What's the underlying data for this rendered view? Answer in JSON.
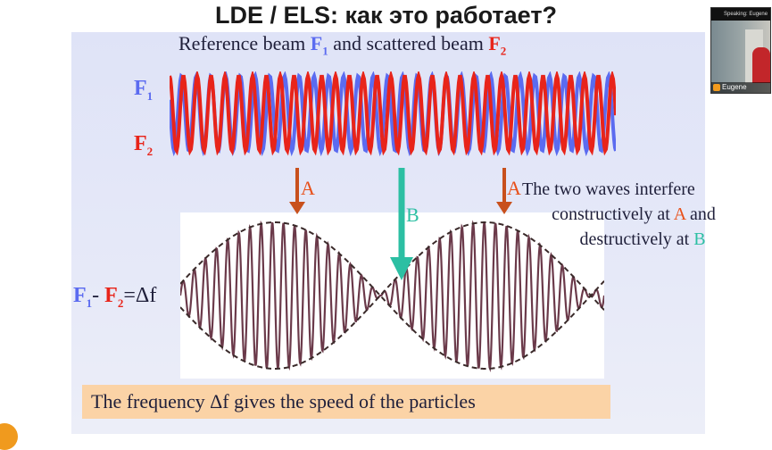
{
  "slide": {
    "title": "LDE / ELS: как это работает?",
    "subtitle": {
      "part1": "Reference beam ",
      "f1": "F",
      "f1_sub": "1",
      "part2": " and scattered beam ",
      "f2": "F",
      "f2_sub": "2"
    },
    "wave_labels": {
      "f1": "F",
      "f1_sub": "1",
      "f2": "F",
      "f2_sub": "2"
    },
    "markers": {
      "a_left": "A",
      "b": "B",
      "a_right": "A"
    },
    "description": {
      "line1": "The two waves interfere",
      "line2_pre": "constructively at ",
      "line2_a": "A",
      "line2_post": " and",
      "line3_pre": "destructively at ",
      "line3_b": "B"
    },
    "formula": {
      "f1": "F",
      "f1_sub": "1",
      "minus": "- ",
      "f2": "F",
      "f2_sub": "2",
      "equals": "=Δf"
    },
    "caption": "The frequency Δf gives the speed of the particles"
  },
  "video_tile": {
    "speaking_label": "Speaking: Eugene",
    "participant_name": "Eugene"
  },
  "colors": {
    "f1": "#5b6bf0",
    "f2": "#e8241a",
    "arrow_a": "#c8501c",
    "arrow_b": "#2cbfa3",
    "beat": "#6b3a4a",
    "caption_bg": "#fbd3a6"
  },
  "icons": [
    "mic-icon",
    "arrow-down-icon"
  ]
}
